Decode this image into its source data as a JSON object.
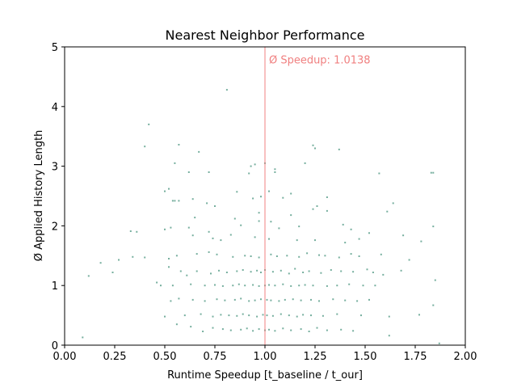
{
  "chart_data": {
    "type": "scatter",
    "title": "Nearest Neighbor Performance",
    "xlabel": "Runtime Speedup [t_baseline / t_our]",
    "ylabel": "Ø Applied History Length",
    "xlim": [
      0.0,
      2.0
    ],
    "ylim": [
      0,
      5
    ],
    "xticks": [
      "0.00",
      "0.25",
      "0.50",
      "0.75",
      "1.00",
      "1.25",
      "1.50",
      "1.75",
      "2.00"
    ],
    "yticks": [
      "0",
      "1",
      "2",
      "3",
      "4",
      "5"
    ],
    "grid": false,
    "point_color": "#1a7a5e",
    "reference_line": {
      "x": 1.0,
      "color": "#f08080"
    },
    "annotation": {
      "text": "Ø Speedup: 1.0138",
      "x": 1.02,
      "y": 4.72,
      "color": "#f08080"
    },
    "series": [
      {
        "values_note": "",
        "x": [
          0.81,
          0.42,
          0.57,
          0.4,
          0.55,
          0.67,
          0.62,
          0.72,
          0.95,
          0.93,
          1.0,
          0.92,
          1.05,
          1.05,
          1.24,
          1.25,
          1.2,
          1.37,
          1.57,
          1.83,
          1.84,
          0.52,
          0.5,
          0.54,
          0.55,
          0.64,
          0.57,
          0.71,
          0.75,
          0.86,
          0.94,
          0.98,
          1.02,
          1.09,
          1.13,
          1.24,
          1.31,
          1.61,
          1.64,
          1.84,
          0.65,
          0.85,
          0.97,
          1.13,
          1.26,
          1.31,
          0.62,
          0.72,
          0.88,
          0.97,
          1.03,
          1.07,
          1.17,
          1.39,
          1.43,
          1.52,
          0.33,
          0.36,
          0.5,
          0.53,
          0.64,
          0.74,
          0.78,
          0.83,
          0.95,
          1.02,
          1.16,
          1.25,
          1.4,
          1.47,
          1.69,
          1.78,
          0.18,
          0.27,
          0.34,
          0.4,
          0.52,
          0.56,
          0.66,
          0.72,
          0.76,
          0.84,
          0.9,
          0.93,
          0.97,
          1.03,
          1.06,
          1.11,
          1.17,
          1.21,
          1.27,
          1.3,
          1.37,
          1.43,
          1.47,
          1.58,
          1.72,
          0.12,
          0.24,
          0.46,
          0.52,
          0.58,
          0.61,
          0.66,
          0.73,
          0.77,
          0.81,
          0.86,
          0.89,
          0.93,
          0.96,
          0.98,
          1.0,
          1.04,
          1.08,
          1.12,
          1.15,
          1.19,
          1.22,
          1.28,
          1.33,
          1.38,
          1.44,
          1.51,
          1.54,
          1.59,
          1.68,
          1.85,
          0.48,
          0.54,
          0.63,
          0.7,
          0.75,
          0.79,
          0.84,
          0.87,
          0.9,
          0.94,
          0.97,
          1.0,
          1.02,
          1.05,
          1.09,
          1.13,
          1.17,
          1.2,
          1.24,
          1.31,
          1.36,
          1.42,
          1.49,
          1.55,
          0.53,
          0.57,
          0.64,
          0.7,
          0.76,
          0.8,
          0.85,
          0.88,
          0.92,
          0.95,
          0.98,
          1.01,
          1.03,
          1.07,
          1.1,
          1.14,
          1.18,
          1.23,
          1.27,
          1.34,
          1.4,
          1.46,
          1.52,
          0.5,
          0.6,
          0.68,
          0.74,
          0.78,
          0.82,
          0.86,
          0.89,
          0.92,
          0.96,
          0.99,
          1.01,
          1.04,
          1.08,
          1.12,
          1.16,
          1.19,
          1.23,
          1.29,
          1.36,
          1.48,
          1.62,
          1.77,
          0.09,
          0.56,
          0.63,
          0.69,
          0.74,
          0.79,
          0.83,
          0.88,
          0.91,
          0.94,
          0.97,
          1.0,
          1.02,
          1.05,
          1.09,
          1.13,
          1.18,
          1.22,
          1.26,
          1.31,
          1.38,
          1.44,
          1.62,
          1.87,
          1.84
        ],
        "y": [
          4.28,
          3.7,
          3.36,
          3.33,
          3.05,
          3.24,
          2.9,
          2.9,
          3.03,
          3.0,
          3.05,
          2.88,
          2.95,
          2.9,
          3.35,
          3.3,
          3.05,
          3.28,
          2.88,
          2.89,
          2.89,
          2.62,
          2.58,
          2.42,
          2.42,
          2.45,
          2.42,
          2.38,
          2.33,
          2.57,
          2.46,
          2.49,
          2.58,
          2.47,
          2.54,
          2.28,
          2.48,
          2.24,
          2.38,
          1.99,
          2.14,
          2.12,
          2.22,
          2.18,
          2.33,
          2.25,
          1.97,
          1.9,
          2.01,
          2.08,
          2.07,
          1.96,
          1.99,
          2.02,
          1.94,
          1.88,
          1.91,
          1.9,
          1.94,
          1.97,
          1.84,
          1.79,
          1.76,
          1.85,
          1.81,
          1.78,
          1.76,
          1.76,
          1.72,
          1.78,
          1.84,
          1.74,
          1.38,
          1.43,
          1.48,
          1.47,
          1.45,
          1.5,
          1.53,
          1.56,
          1.52,
          1.48,
          1.5,
          1.49,
          1.47,
          1.52,
          1.49,
          1.5,
          1.48,
          1.54,
          1.51,
          1.5,
          1.47,
          1.53,
          1.49,
          1.52,
          1.43,
          1.16,
          1.22,
          1.05,
          1.31,
          1.24,
          1.17,
          1.24,
          1.2,
          1.25,
          1.22,
          1.24,
          1.26,
          1.23,
          1.25,
          1.22,
          1.26,
          1.23,
          1.25,
          1.2,
          1.28,
          1.22,
          1.24,
          1.21,
          1.26,
          1.24,
          1.23,
          1.27,
          1.22,
          1.18,
          1.25,
          1.09,
          1.0,
          1.0,
          1.02,
          1.0,
          1.01,
          0.99,
          1.0,
          1.02,
          1.0,
          1.01,
          0.99,
          1.0,
          1.01,
          1.0,
          1.02,
          0.99,
          1.0,
          1.01,
          1.0,
          0.99,
          1.0,
          1.02,
          1.0,
          1.0,
          0.74,
          0.78,
          0.76,
          0.74,
          0.77,
          0.75,
          0.76,
          0.78,
          0.74,
          0.75,
          0.77,
          0.76,
          0.75,
          0.74,
          0.76,
          0.77,
          0.75,
          0.76,
          0.74,
          0.77,
          0.75,
          0.74,
          0.76,
          0.48,
          0.5,
          0.52,
          0.48,
          0.51,
          0.5,
          0.49,
          0.52,
          0.5,
          0.48,
          0.51,
          0.5,
          0.49,
          0.52,
          0.5,
          0.48,
          0.51,
          0.5,
          0.49,
          0.52,
          0.5,
          0.48,
          0.51,
          0.13,
          0.35,
          0.31,
          0.23,
          0.29,
          0.27,
          0.25,
          0.26,
          0.28,
          0.24,
          0.27,
          0.25,
          0.26,
          0.24,
          0.28,
          0.25,
          0.27,
          0.23,
          0.29,
          0.25,
          0.26,
          0.24,
          0.16,
          0.03,
          0.67
        ]
      }
    ]
  }
}
